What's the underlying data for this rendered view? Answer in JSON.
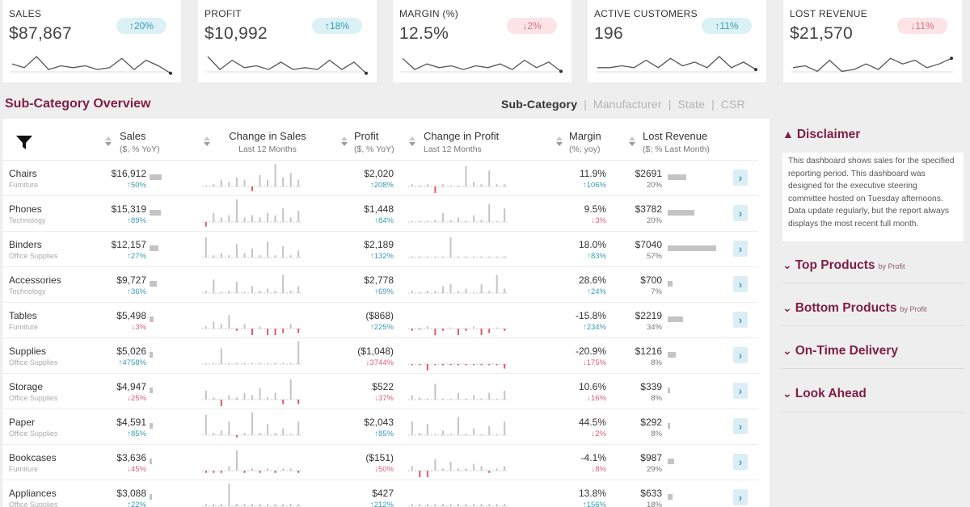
{
  "kpis": [
    {
      "label": "SALES",
      "value": "$87,867",
      "change": "20%",
      "direction": "up",
      "spark": [
        6,
        4,
        10,
        3,
        5,
        4,
        5,
        3,
        4,
        9,
        3,
        8,
        5,
        1
      ]
    },
    {
      "label": "PROFIT",
      "value": "$10,992",
      "change": "18%",
      "direction": "up",
      "spark": [
        10,
        3,
        8,
        4,
        5,
        3,
        7,
        3,
        4,
        3,
        8,
        3,
        7,
        1
      ]
    },
    {
      "label": "MARGIN (%)",
      "value": "12.5%",
      "change": "2%",
      "direction": "down",
      "spark": [
        9,
        3,
        6,
        4,
        5,
        3,
        5,
        4,
        6,
        3,
        8,
        4,
        7,
        2
      ]
    },
    {
      "label": "ACTIVE CUSTOMERS",
      "value": "196",
      "change": "11%",
      "direction": "up",
      "spark": [
        4,
        4,
        5,
        4,
        8,
        4,
        9,
        5,
        7,
        4,
        10,
        4,
        7,
        3
      ]
    },
    {
      "label": "LOST REVENUE",
      "value": "$21,570",
      "change": "11%",
      "direction": "down",
      "spark": [
        4,
        5,
        2,
        8,
        2,
        3,
        6,
        3,
        9,
        6,
        8,
        4,
        6,
        9
      ]
    }
  ],
  "section_title": "Sub-Category Overview",
  "tabs": [
    {
      "label": "Sub-Category",
      "active": true
    },
    {
      "label": "Manufacturer",
      "active": false
    },
    {
      "label": "State",
      "active": false
    },
    {
      "label": "CSR",
      "active": false
    }
  ],
  "columns": {
    "sales": {
      "title": "Sales",
      "sub": "($, % YoY)"
    },
    "change_sales": {
      "title": "Change in Sales",
      "sub": "Last 12 Months"
    },
    "profit": {
      "title": "Profit",
      "sub": "($, % YoY)"
    },
    "change_profit": {
      "title": "Change in Profit",
      "sub": "Last 12 Months"
    },
    "margin": {
      "title": "Margin",
      "sub": "(%; yoy)"
    },
    "lost_revenue": {
      "title": "Lost Revenue",
      "sub": "($; % Last Month)"
    }
  },
  "rows": [
    {
      "category": "Chairs",
      "segment": "Furniture",
      "sales": "$16,912",
      "sales_chg": "50%",
      "sales_dir": "up",
      "sales_bar": 0.55,
      "profit": "$2,020",
      "profit_chg": "208%",
      "profit_dir": "up",
      "margin": "11.9%",
      "margin_chg": "106%",
      "margin_dir": "up",
      "lost": "$2691",
      "lost_pct": "20%",
      "lost_bar": 0.38,
      "sales_series": [
        0.05,
        0.1,
        0.3,
        0.2,
        0.4,
        0.3,
        -0.2,
        0.5,
        0.3,
        1.0,
        0.4,
        0.6,
        0.3
      ],
      "profit_series": [
        0.1,
        0.05,
        0.1,
        -0.4,
        0.1,
        0.05,
        0.05,
        0.9,
        0.2,
        0.1,
        0.7,
        0.1,
        0.1
      ]
    },
    {
      "category": "Phones",
      "segment": "Technology",
      "sales": "$15,319",
      "sales_chg": "89%",
      "sales_dir": "up",
      "sales_bar": 0.5,
      "profit": "$1,448",
      "profit_chg": "84%",
      "profit_dir": "up",
      "margin": "9.5%",
      "margin_chg": "3%",
      "margin_dir": "down",
      "lost": "$3782",
      "lost_pct": "20%",
      "lost_bar": 0.55,
      "sales_series": [
        -0.2,
        0.4,
        0.2,
        0.3,
        1.0,
        0.2,
        0.3,
        0.2,
        0.4,
        0.3,
        0.6,
        0.2,
        0.5
      ],
      "profit_series": [
        0.05,
        0.05,
        0.05,
        0.1,
        0.4,
        0.1,
        0.2,
        0.05,
        0.3,
        0.1,
        0.8,
        0.05,
        0.6
      ]
    },
    {
      "category": "Binders",
      "segment": "Office Supplies",
      "sales": "$12,157",
      "sales_chg": "27%",
      "sales_dir": "up",
      "sales_bar": 0.42,
      "profit": "$2,189",
      "profit_chg": "132%",
      "profit_dir": "up",
      "margin": "18.0%",
      "margin_chg": "83%",
      "margin_dir": "up",
      "lost": "$7040",
      "lost_pct": "57%",
      "lost_bar": 1.0,
      "sales_series": [
        0.9,
        0.1,
        0.2,
        0.1,
        0.6,
        0.2,
        0.4,
        0.1,
        0.7,
        0.1,
        0.5,
        0.1,
        0.3
      ],
      "profit_series": [
        0.05,
        0.05,
        0.05,
        0.05,
        0.05,
        0.9,
        0.05,
        0.05,
        0.05,
        0.05,
        0.05,
        0.05,
        0.05
      ]
    },
    {
      "category": "Accessories",
      "segment": "Technology",
      "sales": "$9,727",
      "sales_chg": "36%",
      "sales_dir": "up",
      "sales_bar": 0.35,
      "profit": "$2,778",
      "profit_chg": "69%",
      "profit_dir": "up",
      "margin": "28.6%",
      "margin_chg": "24%",
      "margin_dir": "up",
      "lost": "$700",
      "lost_pct": "7%",
      "lost_bar": 0.1,
      "sales_series": [
        0.1,
        0.6,
        0.05,
        0.1,
        0.5,
        0.05,
        0.3,
        0.1,
        0.2,
        0.1,
        0.8,
        0.1,
        0.3
      ],
      "profit_series": [
        0.1,
        0.05,
        0.1,
        0.1,
        0.3,
        0.4,
        0.1,
        0.2,
        0.05,
        0.4,
        0.1,
        0.8,
        0.2
      ]
    },
    {
      "category": "Tables",
      "segment": "Furniture",
      "sales": "$5,498",
      "sales_chg": "3%",
      "sales_dir": "down",
      "sales_bar": 0.18,
      "profit": "($868)",
      "profit_chg": "225%",
      "profit_dir": "up",
      "margin": "-15.8%",
      "margin_chg": "234%",
      "margin_dir": "up",
      "lost": "$2219",
      "lost_pct": "34%",
      "lost_bar": 0.32,
      "sales_series": [
        0.1,
        0.3,
        0.2,
        0.6,
        -0.1,
        0.2,
        -0.3,
        0.1,
        -0.4,
        -0.3,
        -0.2,
        0.2,
        -0.2
      ],
      "profit_series": [
        -0.1,
        -0.05,
        0.1,
        -0.3,
        -0.1,
        0.05,
        -0.8,
        -0.1,
        0.1,
        -0.3,
        -0.2,
        0.05,
        -0.1
      ]
    },
    {
      "category": "Supplies",
      "segment": "Office Supplies",
      "sales": "$5,026",
      "sales_chg": "4758%",
      "sales_dir": "up",
      "sales_bar": 0.15,
      "profit": "($1,048)",
      "profit_chg": "3744%",
      "profit_dir": "down",
      "margin": "-20.9%",
      "margin_chg": "175%",
      "margin_dir": "down",
      "lost": "$1216",
      "lost_pct": "8%",
      "lost_bar": 0.16,
      "sales_series": [
        0.05,
        0.05,
        0.7,
        0.05,
        0.05,
        0.05,
        0.05,
        0.05,
        0.05,
        0.05,
        0.05,
        0.05,
        1.0
      ],
      "profit_series": [
        -0.05,
        -0.05,
        -0.9,
        -0.05,
        -0.05,
        -0.05,
        -0.05,
        -0.05,
        -0.05,
        -0.05,
        -0.05,
        -0.05,
        -0.2
      ]
    },
    {
      "category": "Storage",
      "segment": "Office Supplies",
      "sales": "$4,947",
      "sales_chg": "25%",
      "sales_dir": "down",
      "sales_bar": 0.15,
      "profit": "$522",
      "profit_chg": "37%",
      "profit_dir": "down",
      "margin": "10.6%",
      "margin_chg": "16%",
      "margin_dir": "down",
      "lost": "$339",
      "lost_pct": "8%",
      "lost_bar": 0.05,
      "sales_series": [
        0.4,
        0.1,
        -0.3,
        0.2,
        0.1,
        0.3,
        0.2,
        0.5,
        0.1,
        0.3,
        -0.2,
        0.9,
        -0.2
      ],
      "profit_series": [
        0.2,
        0.1,
        0.05,
        0.7,
        0.05,
        0.05,
        0.3,
        0.05,
        0.2,
        0.05,
        0.3,
        0.05,
        0.4
      ]
    },
    {
      "category": "Paper",
      "segment": "Office Supplies",
      "sales": "$4,591",
      "sales_chg": "85%",
      "sales_dir": "up",
      "sales_bar": 0.14,
      "profit": "$2,043",
      "profit_chg": "85%",
      "profit_dir": "up",
      "margin": "44.5%",
      "margin_chg": "2%",
      "margin_dir": "down",
      "lost": "$292",
      "lost_pct": "8%",
      "lost_bar": 0.05,
      "sales_series": [
        0.9,
        0.1,
        0.2,
        0.6,
        -0.1,
        0.1,
        1.0,
        0.1,
        0.5,
        0.1,
        0.3,
        0.05,
        0.6
      ],
      "profit_series": [
        0.6,
        0.1,
        0.5,
        0.05,
        0.2,
        0.05,
        0.8,
        0.05,
        0.3,
        0.05,
        0.4,
        0.05,
        0.6
      ]
    },
    {
      "category": "Bookcases",
      "segment": "Furniture",
      "sales": "$3,636",
      "sales_chg": "45%",
      "sales_dir": "down",
      "sales_bar": 0.12,
      "profit": "($151)",
      "profit_chg": "50%",
      "profit_dir": "down",
      "margin": "-4.1%",
      "margin_chg": "8%",
      "margin_dir": "down",
      "lost": "$987",
      "lost_pct": "29%",
      "lost_bar": 0.14,
      "sales_series": [
        -0.1,
        -0.1,
        -0.1,
        0.2,
        0.9,
        -0.1,
        0.1,
        -0.1,
        0.1,
        -0.1,
        0.1,
        0.1,
        -0.1
      ],
      "profit_series": [
        0.2,
        -0.3,
        -0.5,
        0.5,
        0.1,
        0.4,
        0.1,
        0.1,
        0.3,
        0.2,
        -0.1,
        0.1,
        0.2
      ]
    },
    {
      "category": "Appliances",
      "segment": "Office Supplies",
      "sales": "$3,088",
      "sales_chg": "22%",
      "sales_dir": "up",
      "sales_bar": 0.1,
      "profit": "$427",
      "profit_chg": "212%",
      "profit_dir": "up",
      "margin": "13.8%",
      "margin_chg": "156%",
      "margin_dir": "up",
      "lost": "$633",
      "lost_pct": "18%",
      "lost_bar": 0.1,
      "sales_series": [
        0.1,
        0.1,
        0.1,
        1.0,
        0.1,
        0.1,
        0.1,
        0.1,
        0.1,
        0.1,
        0.1,
        0.1,
        0.1
      ],
      "profit_series": [
        0.1,
        0.1,
        0.1,
        0.1,
        0.1,
        0.1,
        0.1,
        0.1,
        0.1,
        0.1,
        0.1,
        0.1,
        0.1
      ]
    }
  ],
  "sidebar": {
    "disclaimer_title": "Disclaimer",
    "disclaimer_text": "This dashboard shows sales for the specified reporting period. This dashboard was designed for the executive steering committee hosted on Tuesday afternoons. Data update regularly, but the report always displays the most recent full month.",
    "items": [
      {
        "title": "Top Products",
        "by": "by Profit"
      },
      {
        "title": "Bottom Products",
        "by": "by Profit"
      },
      {
        "title": "On-Time Delivery",
        "by": ""
      },
      {
        "title": "Look Ahead",
        "by": ""
      }
    ]
  },
  "colors": {
    "accent": "#7d1e45",
    "up": "#3a9bb3",
    "down": "#d9607a",
    "bar": "#c4c4c4",
    "neg_bar": "#e0576c"
  }
}
